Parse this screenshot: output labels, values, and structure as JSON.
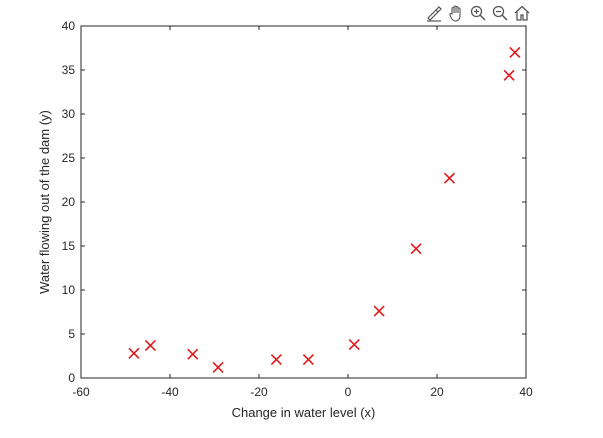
{
  "toolbar": {
    "icons": [
      "brush-icon",
      "pan-hand-icon",
      "zoom-in-icon",
      "zoom-out-icon",
      "home-icon"
    ]
  },
  "chart_data": {
    "type": "scatter",
    "xlabel": "Change in water level (x)",
    "ylabel": "Water flowing out of the dam (y)",
    "xlim": [
      -60,
      40
    ],
    "ylim": [
      0,
      40
    ],
    "xticks": [
      -60,
      -40,
      -20,
      0,
      20,
      40
    ],
    "yticks": [
      0,
      5,
      10,
      15,
      20,
      25,
      30,
      35,
      40
    ],
    "marker": "x",
    "marker_color": "#e31a1c",
    "grid": false,
    "box": true,
    "series": [
      {
        "points": [
          {
            "x": -48.1,
            "y": 2.8
          },
          {
            "x": -44.4,
            "y": 3.7
          },
          {
            "x": -34.9,
            "y": 2.7
          },
          {
            "x": -29.2,
            "y": 1.2
          },
          {
            "x": -16.1,
            "y": 2.1
          },
          {
            "x": -8.9,
            "y": 2.1
          },
          {
            "x": 1.4,
            "y": 3.8
          },
          {
            "x": 7.0,
            "y": 7.6
          },
          {
            "x": 15.3,
            "y": 14.7
          },
          {
            "x": 22.8,
            "y": 22.7
          },
          {
            "x": 36.2,
            "y": 34.4
          },
          {
            "x": 37.5,
            "y": 37.0
          }
        ]
      }
    ]
  }
}
